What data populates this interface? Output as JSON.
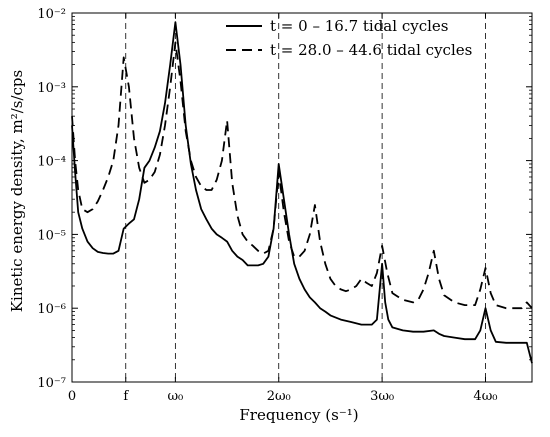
{
  "chart_data": {
    "type": "line",
    "title": "",
    "xlabel": "Frequency (s⁻¹)",
    "ylabel": "Kinetic energy density, m²/s/cps",
    "xlim": [
      0,
      4.45
    ],
    "ylim_log10": [
      -7,
      -2
    ],
    "y_scale": "log",
    "x_ticks": [
      {
        "value": 0,
        "label": "0"
      },
      {
        "value": 0.52,
        "label": "f"
      },
      {
        "value": 1.0,
        "label": "ω₀"
      },
      {
        "value": 2.0,
        "label": "2ω₀"
      },
      {
        "value": 3.0,
        "label": "3ω₀"
      },
      {
        "value": 4.0,
        "label": "4ω₀"
      }
    ],
    "y_ticks": [
      {
        "value": -7,
        "label": "10⁻⁷"
      },
      {
        "value": -6,
        "label": "10⁻⁶"
      },
      {
        "value": -5,
        "label": "10⁻⁵"
      },
      {
        "value": -4,
        "label": "10⁻⁴"
      },
      {
        "value": -3,
        "label": "10⁻³"
      },
      {
        "value": -2,
        "label": "10⁻²"
      }
    ],
    "reference_lines_x": [
      0.52,
      1.0,
      2.0,
      3.0,
      4.0
    ],
    "legend_position": "top-right",
    "series": [
      {
        "name": "t = 0 – 16.7 tidal cycles",
        "style": "solid",
        "points": [
          [
            0.0,
            0.0003
          ],
          [
            0.03,
            7e-05
          ],
          [
            0.06,
            2e-05
          ],
          [
            0.1,
            1.2e-05
          ],
          [
            0.15,
            8e-06
          ],
          [
            0.2,
            6.5e-06
          ],
          [
            0.25,
            5.8e-06
          ],
          [
            0.3,
            5.6e-06
          ],
          [
            0.35,
            5.5e-06
          ],
          [
            0.4,
            5.5e-06
          ],
          [
            0.45,
            6e-06
          ],
          [
            0.5,
            1.2e-05
          ],
          [
            0.55,
            1.4e-05
          ],
          [
            0.6,
            1.6e-05
          ],
          [
            0.65,
            3e-05
          ],
          [
            0.7,
            8e-05
          ],
          [
            0.75,
            0.0001
          ],
          [
            0.8,
            0.00015
          ],
          [
            0.85,
            0.00025
          ],
          [
            0.9,
            0.0006
          ],
          [
            0.95,
            0.002
          ],
          [
            1.0,
            0.0075
          ],
          [
            1.05,
            0.002
          ],
          [
            1.1,
            0.0003
          ],
          [
            1.15,
            9e-05
          ],
          [
            1.2,
            4e-05
          ],
          [
            1.25,
            2.2e-05
          ],
          [
            1.3,
            1.6e-05
          ],
          [
            1.35,
            1.2e-05
          ],
          [
            1.4,
            1e-05
          ],
          [
            1.45,
            9e-06
          ],
          [
            1.5,
            8e-06
          ],
          [
            1.55,
            6e-06
          ],
          [
            1.6,
            5e-06
          ],
          [
            1.65,
            4.5e-06
          ],
          [
            1.7,
            3.8e-06
          ],
          [
            1.75,
            3.8e-06
          ],
          [
            1.8,
            3.8e-06
          ],
          [
            1.85,
            4e-06
          ],
          [
            1.9,
            5e-06
          ],
          [
            1.95,
            1.2e-05
          ],
          [
            2.0,
            9e-05
          ],
          [
            2.05,
            3e-05
          ],
          [
            2.1,
            1e-05
          ],
          [
            2.15,
            4e-06
          ],
          [
            2.2,
            2.5e-06
          ],
          [
            2.25,
            1.8e-06
          ],
          [
            2.3,
            1.4e-06
          ],
          [
            2.35,
            1.2e-06
          ],
          [
            2.4,
            1e-06
          ],
          [
            2.45,
            9e-07
          ],
          [
            2.5,
            8e-07
          ],
          [
            2.6,
            7e-07
          ],
          [
            2.7,
            6.5e-07
          ],
          [
            2.8,
            6e-07
          ],
          [
            2.9,
            6e-07
          ],
          [
            2.95,
            7e-07
          ],
          [
            3.0,
            4e-06
          ],
          [
            3.03,
            1.2e-06
          ],
          [
            3.06,
            7e-07
          ],
          [
            3.1,
            5.5e-07
          ],
          [
            3.2,
            5e-07
          ],
          [
            3.3,
            4.8e-07
          ],
          [
            3.4,
            4.8e-07
          ],
          [
            3.5,
            5e-07
          ],
          [
            3.55,
            4.5e-07
          ],
          [
            3.6,
            4.2e-07
          ],
          [
            3.7,
            4e-07
          ],
          [
            3.8,
            3.8e-07
          ],
          [
            3.9,
            3.8e-07
          ],
          [
            3.95,
            5e-07
          ],
          [
            4.0,
            1e-06
          ],
          [
            4.05,
            5e-07
          ],
          [
            4.1,
            3.5e-07
          ],
          [
            4.2,
            3.4e-07
          ],
          [
            4.3,
            3.4e-07
          ],
          [
            4.4,
            3.4e-07
          ],
          [
            4.45,
            1.8e-07
          ]
        ]
      },
      {
        "name": "t = 28.0 – 44.6 tidal cycles",
        "style": "dashed",
        "points": [
          [
            0.0,
            0.0004
          ],
          [
            0.03,
            0.0001
          ],
          [
            0.06,
            4e-05
          ],
          [
            0.1,
            2.2e-05
          ],
          [
            0.15,
            2e-05
          ],
          [
            0.2,
            2.2e-05
          ],
          [
            0.25,
            2.8e-05
          ],
          [
            0.3,
            4e-05
          ],
          [
            0.35,
            6e-05
          ],
          [
            0.4,
            0.0001
          ],
          [
            0.45,
            0.0003
          ],
          [
            0.5,
            0.0025
          ],
          [
            0.55,
            0.001
          ],
          [
            0.6,
            0.0002
          ],
          [
            0.65,
            8e-05
          ],
          [
            0.7,
            5e-05
          ],
          [
            0.75,
            5.5e-05
          ],
          [
            0.8,
            7e-05
          ],
          [
            0.85,
            0.00012
          ],
          [
            0.9,
            0.0003
          ],
          [
            0.95,
            0.001
          ],
          [
            1.0,
            0.004
          ],
          [
            1.05,
            0.0012
          ],
          [
            1.1,
            0.00025
          ],
          [
            1.15,
            0.0001
          ],
          [
            1.2,
            6e-05
          ],
          [
            1.25,
            4.5e-05
          ],
          [
            1.3,
            4e-05
          ],
          [
            1.35,
            4e-05
          ],
          [
            1.4,
            5.5e-05
          ],
          [
            1.45,
            0.0001
          ],
          [
            1.5,
            0.00035
          ],
          [
            1.55,
            5e-05
          ],
          [
            1.6,
            1.8e-05
          ],
          [
            1.65,
            1e-05
          ],
          [
            1.7,
            8e-06
          ],
          [
            1.75,
            7e-06
          ],
          [
            1.8,
            6e-06
          ],
          [
            1.85,
            5.5e-06
          ],
          [
            1.9,
            6e-06
          ],
          [
            1.95,
            1.2e-05
          ],
          [
            2.0,
            7e-05
          ],
          [
            2.05,
            2e-05
          ],
          [
            2.1,
            8e-06
          ],
          [
            2.15,
            5e-06
          ],
          [
            2.2,
            5e-06
          ],
          [
            2.25,
            6e-06
          ],
          [
            2.3,
            1e-05
          ],
          [
            2.35,
            2.5e-05
          ],
          [
            2.4,
            8e-06
          ],
          [
            2.45,
            4e-06
          ],
          [
            2.5,
            2.5e-06
          ],
          [
            2.55,
            2e-06
          ],
          [
            2.6,
            1.8e-06
          ],
          [
            2.65,
            1.7e-06
          ],
          [
            2.7,
            1.8e-06
          ],
          [
            2.75,
            2e-06
          ],
          [
            2.8,
            2.5e-06
          ],
          [
            2.85,
            2.2e-06
          ],
          [
            2.9,
            2e-06
          ],
          [
            2.95,
            3e-06
          ],
          [
            3.0,
            7e-06
          ],
          [
            3.05,
            3e-06
          ],
          [
            3.1,
            1.6e-06
          ],
          [
            3.2,
            1.3e-06
          ],
          [
            3.3,
            1.2e-06
          ],
          [
            3.35,
            1.3e-06
          ],
          [
            3.4,
            1.8e-06
          ],
          [
            3.45,
            3e-06
          ],
          [
            3.5,
            6e-06
          ],
          [
            3.55,
            2.5e-06
          ],
          [
            3.6,
            1.5e-06
          ],
          [
            3.7,
            1.2e-06
          ],
          [
            3.8,
            1.1e-06
          ],
          [
            3.9,
            1.1e-06
          ],
          [
            3.95,
            1.8e-06
          ],
          [
            4.0,
            3.5e-06
          ],
          [
            4.05,
            1.6e-06
          ],
          [
            4.1,
            1.1e-06
          ],
          [
            4.2,
            1e-06
          ],
          [
            4.3,
            1e-06
          ],
          [
            4.35,
            1e-06
          ],
          [
            4.4,
            1.2e-06
          ],
          [
            4.45,
            1e-06
          ]
        ]
      }
    ]
  }
}
